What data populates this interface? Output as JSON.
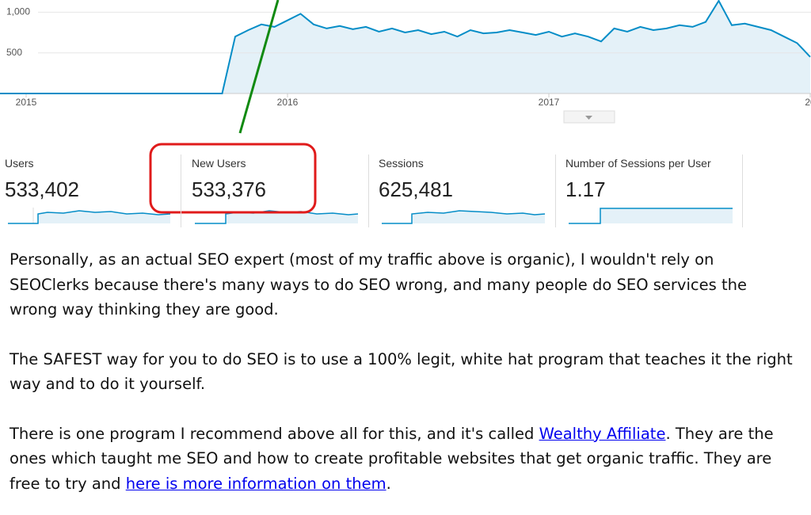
{
  "chart_data": {
    "type": "line",
    "x": [
      2014.9,
      2014.95,
      2015.0,
      2015.05,
      2015.1,
      2015.15,
      2015.2,
      2015.25,
      2015.3,
      2015.35,
      2015.4,
      2015.45,
      2015.5,
      2015.55,
      2015.6,
      2015.65,
      2015.7,
      2015.75,
      2015.8,
      2015.85,
      2015.9,
      2015.95,
      2016.0,
      2016.05,
      2016.1,
      2016.15,
      2016.2,
      2016.25,
      2016.3,
      2016.35,
      2016.4,
      2016.45,
      2016.5,
      2016.55,
      2016.6,
      2016.65,
      2016.7,
      2016.75,
      2016.8,
      2016.85,
      2016.9,
      2016.95,
      2017.0,
      2017.05,
      2017.1,
      2017.15,
      2017.2,
      2017.25,
      2017.3,
      2017.35,
      2017.4,
      2017.45,
      2017.5,
      2017.55,
      2017.6,
      2017.65,
      2017.7,
      2017.75,
      2017.8,
      2017.85,
      2017.9,
      2017.95,
      2018.0
    ],
    "values": [
      0,
      0,
      0,
      0,
      0,
      0,
      0,
      0,
      0,
      0,
      0,
      0,
      0,
      0,
      0,
      0,
      0,
      0,
      700,
      780,
      850,
      820,
      900,
      980,
      850,
      800,
      830,
      790,
      820,
      760,
      800,
      750,
      780,
      730,
      760,
      700,
      780,
      740,
      750,
      780,
      750,
      720,
      760,
      700,
      740,
      700,
      640,
      800,
      760,
      820,
      780,
      800,
      840,
      820,
      880,
      1140,
      840,
      860,
      820,
      780,
      700,
      620,
      450
    ],
    "color": "#058dc7",
    "xlim": [
      2014.9,
      2018.003
    ],
    "ylim": [
      0,
      1150
    ],
    "xticks": [
      2015,
      2016,
      2017,
      {
        "value": 2018,
        "label": "20"
      }
    ],
    "yticks": [
      500,
      {
        "value": 1000,
        "label": "1,000"
      }
    ],
    "grid": true
  },
  "scorecards": [
    {
      "label": "Users",
      "value": "533,402"
    },
    {
      "label": "New Users",
      "value": "533,376"
    },
    {
      "label": "Sessions",
      "value": "625,481"
    },
    {
      "label": "Number of Sessions per User",
      "value": "1.17"
    }
  ],
  "paragraphs": [
    "Personally, as an actual SEO expert (most of my traffic above is organic), I wouldn't rely on SEOClerks because there's many ways to do SEO wrong, and many people do SEO services the wrong way thinking they are good.",
    "The SAFEST way for you to do SEO is to use a 100% legit, white hat program that teaches it the right way and to do it yourself."
  ],
  "closing": {
    "before": "There is one program I recommend above all for this, and it's called ",
    "link_1": "Wealthy Affiliate",
    "middle": ". They are the ones which taught me SEO and how to create profitable websites that get organic traffic. They are free to try and ",
    "link_2": "here is more information on them",
    "after": "."
  }
}
